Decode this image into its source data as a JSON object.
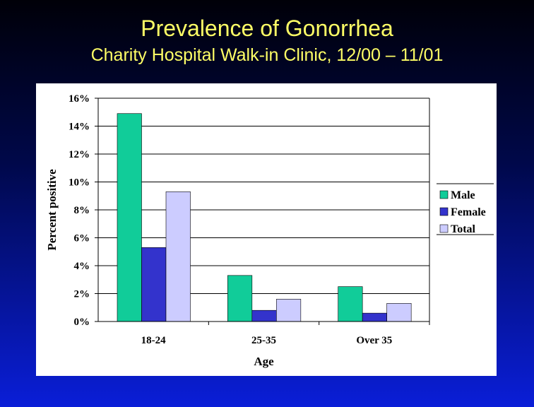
{
  "slide": {
    "title": "Prevalence of Gonorrhea",
    "subtitle": "Charity Hospital Walk-in Clinic, 12/00 – 11/01"
  },
  "chart_data": {
    "type": "bar",
    "categories": [
      "18-24",
      "25-35",
      "Over 35"
    ],
    "series": [
      {
        "name": "Male",
        "values": [
          14.9,
          3.3,
          2.5
        ],
        "color": "#11cc99"
      },
      {
        "name": "Female",
        "values": [
          5.3,
          0.8,
          0.6
        ],
        "color": "#3333cc"
      },
      {
        "name": "Total",
        "values": [
          9.3,
          1.6,
          1.3
        ],
        "color": "#ccccff"
      }
    ],
    "xlabel": "Age",
    "ylabel": "Percent positive",
    "ylim": [
      0,
      16
    ],
    "yticks": [
      "0%",
      "2%",
      "4%",
      "6%",
      "8%",
      "10%",
      "12%",
      "14%",
      "16%"
    ],
    "grid": true,
    "legend": "right"
  }
}
